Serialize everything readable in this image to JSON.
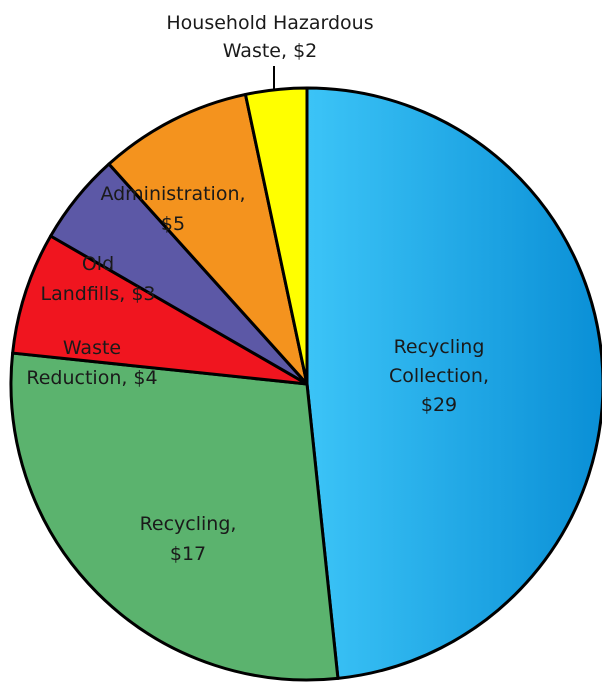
{
  "chart_data": {
    "type": "pie",
    "title": "",
    "unit": "$",
    "slices": [
      {
        "name": "Recycling Collection",
        "value": 29,
        "label_lines": [
          "Recycling",
          "Collection,",
          "$29"
        ],
        "color": "#1aa3e8"
      },
      {
        "name": "Recycling",
        "value": 17,
        "label_lines": [
          "Recycling,",
          "$17"
        ],
        "color": "#5bb36e"
      },
      {
        "name": "Waste Reduction",
        "value": 4,
        "label_lines": [
          "Waste",
          "Reduction, $4"
        ],
        "color": "#f0151f"
      },
      {
        "name": "Old Landfills",
        "value": 3,
        "label_lines": [
          "Old",
          "Landfills, $3"
        ],
        "color": "#5c58a6"
      },
      {
        "name": "Administration",
        "value": 5,
        "label_lines": [
          "Administration,",
          "$5"
        ],
        "color": "#f4931e"
      },
      {
        "name": "Household Hazardous Waste",
        "value": 2,
        "label_lines": [
          "Household Hazardous",
          "Waste, $2"
        ],
        "color": "#ffff00"
      }
    ],
    "legend": "none"
  }
}
